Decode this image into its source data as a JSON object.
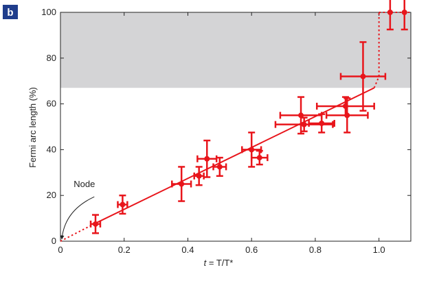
{
  "panel_label": "b",
  "colors": {
    "data": "#e8151b",
    "shade": "#d4d4d6",
    "panel_badge": "#1f3d8c",
    "axis": "#222222"
  },
  "chart_data": {
    "type": "scatter",
    "xlabel_italic": "t",
    "xlabel_rest": " = T/T*",
    "ylabel": "Fermi arc length (%)",
    "xlim": [
      0,
      1.1
    ],
    "ylim": [
      0,
      100
    ],
    "x_ticks": [
      {
        "value": 0,
        "label": "0"
      },
      {
        "value": 0.2,
        "label": "0.2"
      },
      {
        "value": 0.4,
        "label": "0.4"
      },
      {
        "value": 0.6,
        "label": "0.6"
      },
      {
        "value": 0.8,
        "label": "0.8"
      },
      {
        "value": 1.0,
        "label": "1.0"
      }
    ],
    "y_ticks": [
      {
        "value": 0,
        "label": "0"
      },
      {
        "value": 20,
        "label": "20"
      },
      {
        "value": 40,
        "label": "40"
      },
      {
        "value": 60,
        "label": "60"
      },
      {
        "value": 80,
        "label": "80"
      },
      {
        "value": 100,
        "label": "100"
      }
    ],
    "shaded_region": {
      "y_from": 67,
      "y_to": 100
    },
    "points": [
      {
        "x": 0.11,
        "y": 7.5,
        "xerr": 0.015,
        "yerr": 4
      },
      {
        "x": 0.195,
        "y": 16,
        "xerr": 0.015,
        "yerr": 4
      },
      {
        "x": 0.38,
        "y": 25,
        "xerr": 0.03,
        "yerr": 7.5
      },
      {
        "x": 0.435,
        "y": 28.5,
        "xerr": 0.015,
        "yerr": 4
      },
      {
        "x": 0.46,
        "y": 36,
        "xerr": 0.03,
        "yerr": 8
      },
      {
        "x": 0.5,
        "y": 32.5,
        "xerr": 0.02,
        "yerr": 4
      },
      {
        "x": 0.6,
        "y": 40,
        "xerr": 0.03,
        "yerr": 7.5
      },
      {
        "x": 0.625,
        "y": 36.5,
        "xerr": 0.025,
        "yerr": 3
      },
      {
        "x": 0.755,
        "y": 55,
        "xerr": 0.065,
        "yerr": 8
      },
      {
        "x": 0.765,
        "y": 51,
        "xerr": 0.09,
        "yerr": 3
      },
      {
        "x": 0.82,
        "y": 51.5,
        "xerr": 0.04,
        "yerr": 4
      },
      {
        "x": 0.895,
        "y": 59,
        "xerr": 0.09,
        "yerr": 4
      },
      {
        "x": 0.9,
        "y": 55,
        "xerr": 0.065,
        "yerr": 7.5
      },
      {
        "x": 0.95,
        "y": 72,
        "xerr": 0.07,
        "yerr": 15
      },
      {
        "x": 1.035,
        "y": 100,
        "xerr": 0,
        "yerr": 7.5
      },
      {
        "x": 1.08,
        "y": 100,
        "xerr": 0,
        "yerr": 7.5
      }
    ],
    "fit_line": [
      [
        0.105,
        7.5
      ],
      [
        0.985,
        67
      ]
    ],
    "dotted_segments": [
      [
        [
          0,
          0
        ],
        [
          0.105,
          7.5
        ]
      ],
      [
        [
          0.985,
          67
        ],
        [
          1.0,
          72
        ]
      ],
      [
        [
          1.0,
          72
        ],
        [
          1.0,
          100
        ]
      ],
      [
        [
          1.0,
          100
        ],
        [
          1.1,
          100
        ]
      ]
    ],
    "annotation": {
      "text": "Node",
      "x": 0.02,
      "y": 20,
      "arrow_to": [
        0,
        0
      ]
    }
  }
}
